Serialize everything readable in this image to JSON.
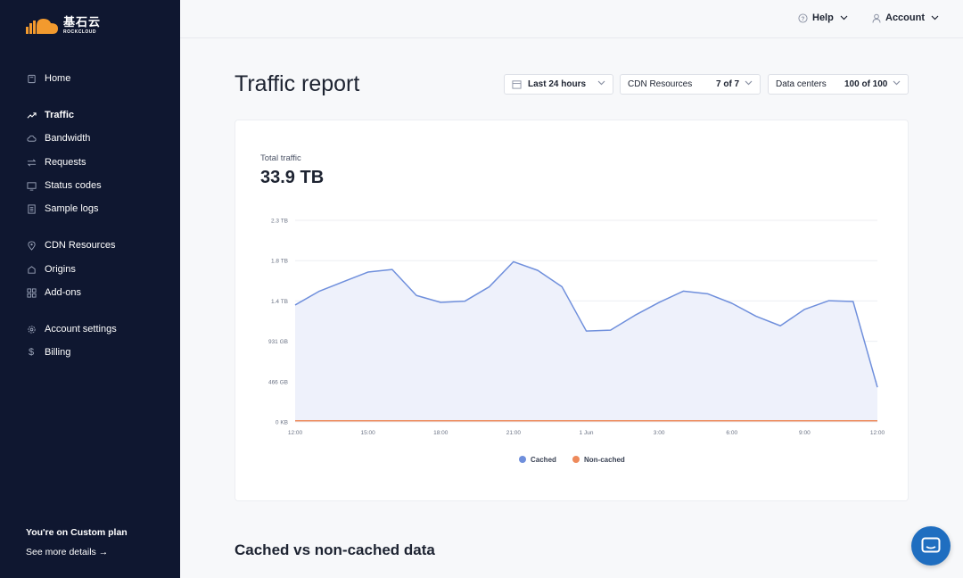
{
  "brand": {
    "name_cn": "基石云",
    "name_en": "ROCKCLOUD"
  },
  "sidebar": {
    "items": [
      {
        "label": "Home",
        "icon": "home-icon"
      },
      {
        "label": "Traffic",
        "icon": "trend-icon",
        "active": true
      },
      {
        "label": "Bandwidth",
        "icon": "cloud-icon"
      },
      {
        "label": "Requests",
        "icon": "arrows-icon"
      },
      {
        "label": "Status codes",
        "icon": "status-icon"
      },
      {
        "label": "Sample logs",
        "icon": "logs-icon"
      },
      {
        "label": "CDN Resources",
        "icon": "pin-icon"
      },
      {
        "label": "Origins",
        "icon": "origin-icon"
      },
      {
        "label": "Add-ons",
        "icon": "grid-icon"
      },
      {
        "label": "Account settings",
        "icon": "gear-icon"
      },
      {
        "label": "Billing",
        "icon": "dollar-icon"
      }
    ],
    "plan_text": "You're on Custom plan",
    "plan_link": "See more details →"
  },
  "topbar": {
    "help": "Help",
    "account": "Account"
  },
  "page": {
    "title": "Traffic report",
    "filters": {
      "period": "Last 24 hours",
      "resources_label": "CDN Resources",
      "resources_value": "7 of 7",
      "datacenters_label": "Data centers",
      "datacenters_value": "100 of 100"
    },
    "total_label": "Total traffic",
    "total_value": "33.9 TB",
    "section_title": "Cached vs non-cached data"
  },
  "colors": {
    "cached": "#6f8fdc",
    "noncached": "#ee8a5b",
    "sidebar_bg": "#0f1730",
    "fill": "#eef1fb"
  },
  "chart_data": {
    "type": "area",
    "y_tick_labels": [
      "0 KB",
      "466 GB",
      "931 GB",
      "1.4 TB",
      "1.8 TB",
      "2.3 TB"
    ],
    "x_tick_labels": [
      "12:00",
      "15:00",
      "18:00",
      "21:00",
      "1 Jun",
      "3:00",
      "6:00",
      "9:00",
      "12:00"
    ],
    "ylim_gb": [
      0,
      2328
    ],
    "grid": true,
    "legend_placement": "bottom-center",
    "series": [
      {
        "name": "Cached",
        "values_gb": [
          1350,
          1510,
          1620,
          1730,
          1760,
          1460,
          1380,
          1395,
          1560,
          1850,
          1750,
          1560,
          1050,
          1060,
          1230,
          1380,
          1510,
          1480,
          1370,
          1220,
          1110,
          1300,
          1400,
          1390,
          400
        ]
      },
      {
        "name": "Non-cached",
        "values_gb": [
          2,
          2,
          2,
          2,
          2,
          2,
          2,
          2,
          2,
          2,
          2,
          2,
          2,
          2,
          2,
          2,
          2,
          2,
          2,
          2,
          2,
          2,
          2,
          2,
          2
        ]
      }
    ]
  }
}
